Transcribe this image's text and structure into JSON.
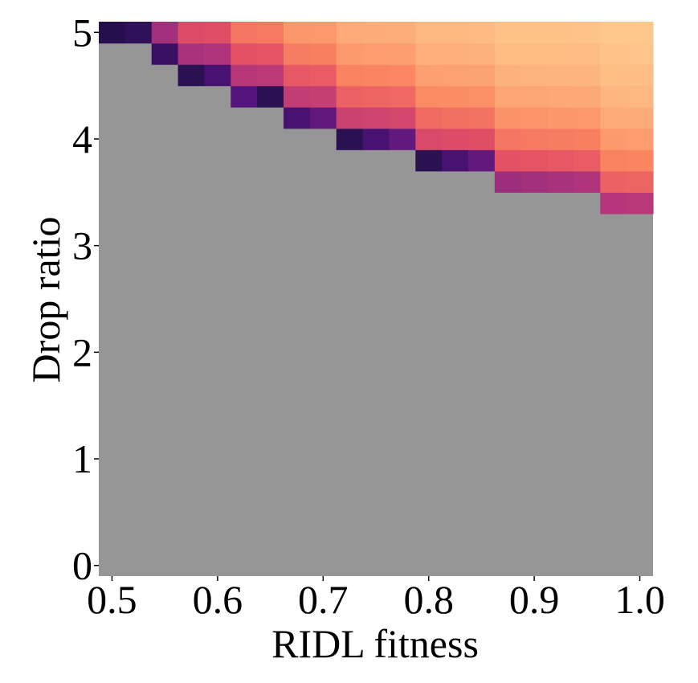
{
  "chart_data": {
    "type": "heatmap",
    "title": "",
    "xlabel": "RIDL fitness",
    "ylabel": "Drop ratio",
    "xlim": [
      0.5,
      1.0
    ],
    "ylim": [
      0,
      5
    ],
    "x_ticks": [
      {
        "value": 0.5,
        "label": "0.5"
      },
      {
        "value": 0.6,
        "label": "0.6"
      },
      {
        "value": 0.7,
        "label": "0.7"
      },
      {
        "value": 0.8,
        "label": "0.8"
      },
      {
        "value": 0.9,
        "label": "0.9"
      },
      {
        "value": 1.0,
        "label": "1.0"
      }
    ],
    "y_ticks": [
      {
        "value": 0,
        "label": "0"
      },
      {
        "value": 1,
        "label": "1"
      },
      {
        "value": 2,
        "label": "2"
      },
      {
        "value": 3,
        "label": "3"
      },
      {
        "value": 4,
        "label": "4"
      },
      {
        "value": 5,
        "label": "5"
      }
    ],
    "n_cols": 21,
    "n_rows": 26,
    "x_start": 0.5,
    "x_step": 0.025,
    "y_start": 0.0,
    "y_step": 0.2,
    "colormap": "magma",
    "colormap_range": [
      0.15,
      0.85
    ],
    "background_color": "#969696",
    "edge_cells": [
      {
        "x": 0.5,
        "y": 5.0
      },
      {
        "x": 0.55,
        "y": 4.8
      },
      {
        "x": 0.575,
        "y": 4.6
      },
      {
        "x": 0.625,
        "y": 4.4
      },
      {
        "x": 0.675,
        "y": 4.2
      },
      {
        "x": 0.725,
        "y": 4.0
      },
      {
        "x": 0.8,
        "y": 3.8
      },
      {
        "x": 0.875,
        "y": 3.6
      },
      {
        "x": 0.975,
        "y": 3.4
      }
    ],
    "value_rule": "cells above each column's threshold are colored; value increases with distance above the threshold (dark at threshold, light peach far above); cells below are gray"
  }
}
